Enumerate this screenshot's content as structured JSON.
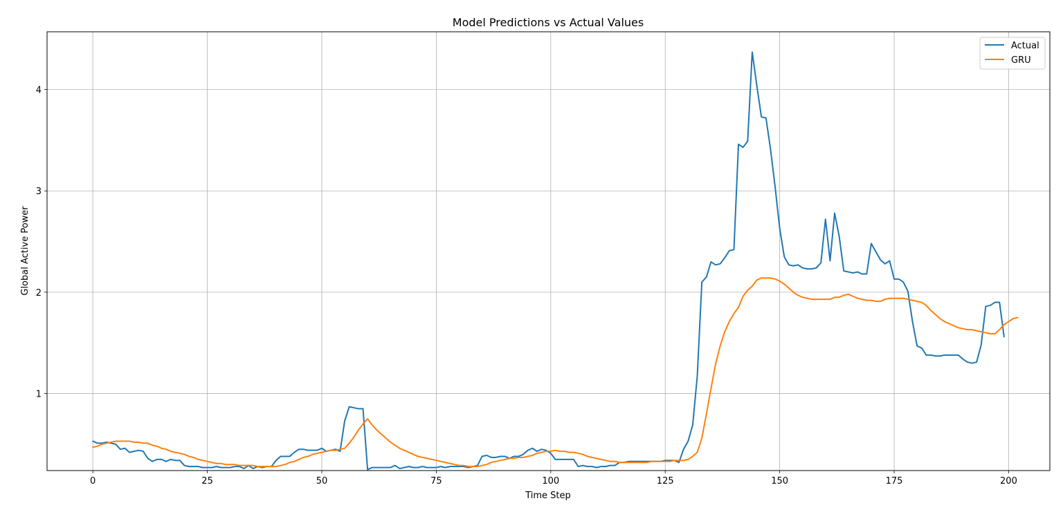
{
  "chart_data": {
    "type": "line",
    "title": "Model Predictions vs Actual Values",
    "xlabel": "Time Step",
    "ylabel": "Global Active Power",
    "xlim": [
      -10,
      209
    ],
    "ylim": [
      0.24,
      4.57
    ],
    "xticks": [
      0,
      25,
      50,
      75,
      100,
      125,
      150,
      175,
      200
    ],
    "yticks": [
      1,
      2,
      3,
      4
    ],
    "grid": true,
    "legend_position": "upper right",
    "series": [
      {
        "name": "Actual",
        "color": "#1f77b4",
        "values": [
          0.53,
          0.51,
          0.51,
          0.52,
          0.51,
          0.5,
          0.45,
          0.46,
          0.42,
          0.43,
          0.44,
          0.43,
          0.36,
          0.33,
          0.35,
          0.35,
          0.33,
          0.35,
          0.34,
          0.34,
          0.29,
          0.28,
          0.28,
          0.28,
          0.27,
          0.27,
          0.27,
          0.28,
          0.27,
          0.27,
          0.27,
          0.28,
          0.28,
          0.26,
          0.29,
          0.26,
          0.28,
          0.27,
          0.28,
          0.28,
          0.34,
          0.38,
          0.38,
          0.38,
          0.42,
          0.45,
          0.45,
          0.44,
          0.44,
          0.44,
          0.46,
          0.43,
          0.44,
          0.45,
          0.43,
          0.73,
          0.87,
          0.86,
          0.85,
          0.85,
          0.25,
          0.27,
          0.27,
          0.27,
          0.27,
          0.27,
          0.29,
          0.26,
          0.27,
          0.28,
          0.27,
          0.27,
          0.28,
          0.27,
          0.27,
          0.27,
          0.28,
          0.27,
          0.28,
          0.28,
          0.28,
          0.28,
          0.27,
          0.28,
          0.29,
          0.38,
          0.39,
          0.37,
          0.37,
          0.38,
          0.38,
          0.36,
          0.38,
          0.38,
          0.4,
          0.44,
          0.46,
          0.43,
          0.45,
          0.44,
          0.41,
          0.35,
          0.35,
          0.35,
          0.35,
          0.35,
          0.28,
          0.29,
          0.28,
          0.28,
          0.27,
          0.28,
          0.28,
          0.29,
          0.29,
          0.32,
          0.32,
          0.33,
          0.33,
          0.33,
          0.33,
          0.33,
          0.33,
          0.33,
          0.33,
          0.34,
          0.34,
          0.34,
          0.32,
          0.45,
          0.53,
          0.69,
          1.17,
          2.1,
          2.15,
          2.3,
          2.27,
          2.28,
          2.34,
          2.41,
          2.42,
          3.46,
          3.43,
          3.49,
          4.37,
          4.04,
          3.73,
          3.72,
          3.41,
          3.04,
          2.63,
          2.35,
          2.27,
          2.26,
          2.27,
          2.24,
          2.23,
          2.23,
          2.24,
          2.29,
          2.72,
          2.31,
          2.78,
          2.55,
          2.21,
          2.2,
          2.19,
          2.2,
          2.18,
          2.18,
          2.48,
          2.4,
          2.32,
          2.28,
          2.31,
          2.13,
          2.13,
          2.1,
          2.01,
          1.71,
          1.47,
          1.45,
          1.38,
          1.38,
          1.37,
          1.37,
          1.38,
          1.38,
          1.38,
          1.38,
          1.34,
          1.31,
          1.3,
          1.31,
          1.48,
          1.86,
          1.87,
          1.9,
          1.9,
          1.56
        ]
      },
      {
        "name": "GRU",
        "color": "#ff7f0e",
        "values": [
          0.47,
          0.48,
          0.5,
          0.51,
          0.52,
          0.53,
          0.53,
          0.53,
          0.53,
          0.52,
          0.52,
          0.51,
          0.51,
          0.49,
          0.48,
          0.46,
          0.45,
          0.43,
          0.42,
          0.41,
          0.4,
          0.38,
          0.37,
          0.35,
          0.34,
          0.33,
          0.32,
          0.31,
          0.31,
          0.3,
          0.3,
          0.3,
          0.29,
          0.29,
          0.29,
          0.29,
          0.28,
          0.28,
          0.28,
          0.28,
          0.28,
          0.29,
          0.3,
          0.32,
          0.33,
          0.35,
          0.37,
          0.38,
          0.4,
          0.41,
          0.42,
          0.43,
          0.44,
          0.44,
          0.45,
          0.46,
          0.51,
          0.57,
          0.64,
          0.7,
          0.75,
          0.69,
          0.64,
          0.6,
          0.56,
          0.52,
          0.49,
          0.46,
          0.44,
          0.42,
          0.4,
          0.38,
          0.37,
          0.36,
          0.35,
          0.34,
          0.33,
          0.32,
          0.31,
          0.3,
          0.29,
          0.29,
          0.28,
          0.28,
          0.28,
          0.29,
          0.3,
          0.32,
          0.33,
          0.34,
          0.35,
          0.36,
          0.36,
          0.37,
          0.37,
          0.38,
          0.39,
          0.41,
          0.42,
          0.43,
          0.43,
          0.44,
          0.43,
          0.43,
          0.42,
          0.42,
          0.41,
          0.4,
          0.38,
          0.37,
          0.36,
          0.35,
          0.34,
          0.33,
          0.33,
          0.32,
          0.32,
          0.32,
          0.32,
          0.32,
          0.32,
          0.32,
          0.33,
          0.33,
          0.33,
          0.33,
          0.33,
          0.34,
          0.34,
          0.34,
          0.35,
          0.38,
          0.42,
          0.56,
          0.8,
          1.05,
          1.29,
          1.47,
          1.61,
          1.71,
          1.79,
          1.85,
          1.96,
          2.02,
          2.06,
          2.12,
          2.14,
          2.14,
          2.14,
          2.13,
          2.11,
          2.08,
          2.04,
          2.0,
          1.97,
          1.95,
          1.94,
          1.93,
          1.93,
          1.93,
          1.93,
          1.93,
          1.95,
          1.95,
          1.97,
          1.98,
          1.96,
          1.94,
          1.93,
          1.92,
          1.92,
          1.91,
          1.91,
          1.93,
          1.94,
          1.94,
          1.94,
          1.94,
          1.93,
          1.92,
          1.91,
          1.9,
          1.87,
          1.82,
          1.78,
          1.74,
          1.71,
          1.69,
          1.67,
          1.65,
          1.64,
          1.63,
          1.63,
          1.62,
          1.61,
          1.6,
          1.59,
          1.59,
          1.63,
          1.68,
          1.71,
          1.74,
          1.75
        ]
      }
    ]
  }
}
